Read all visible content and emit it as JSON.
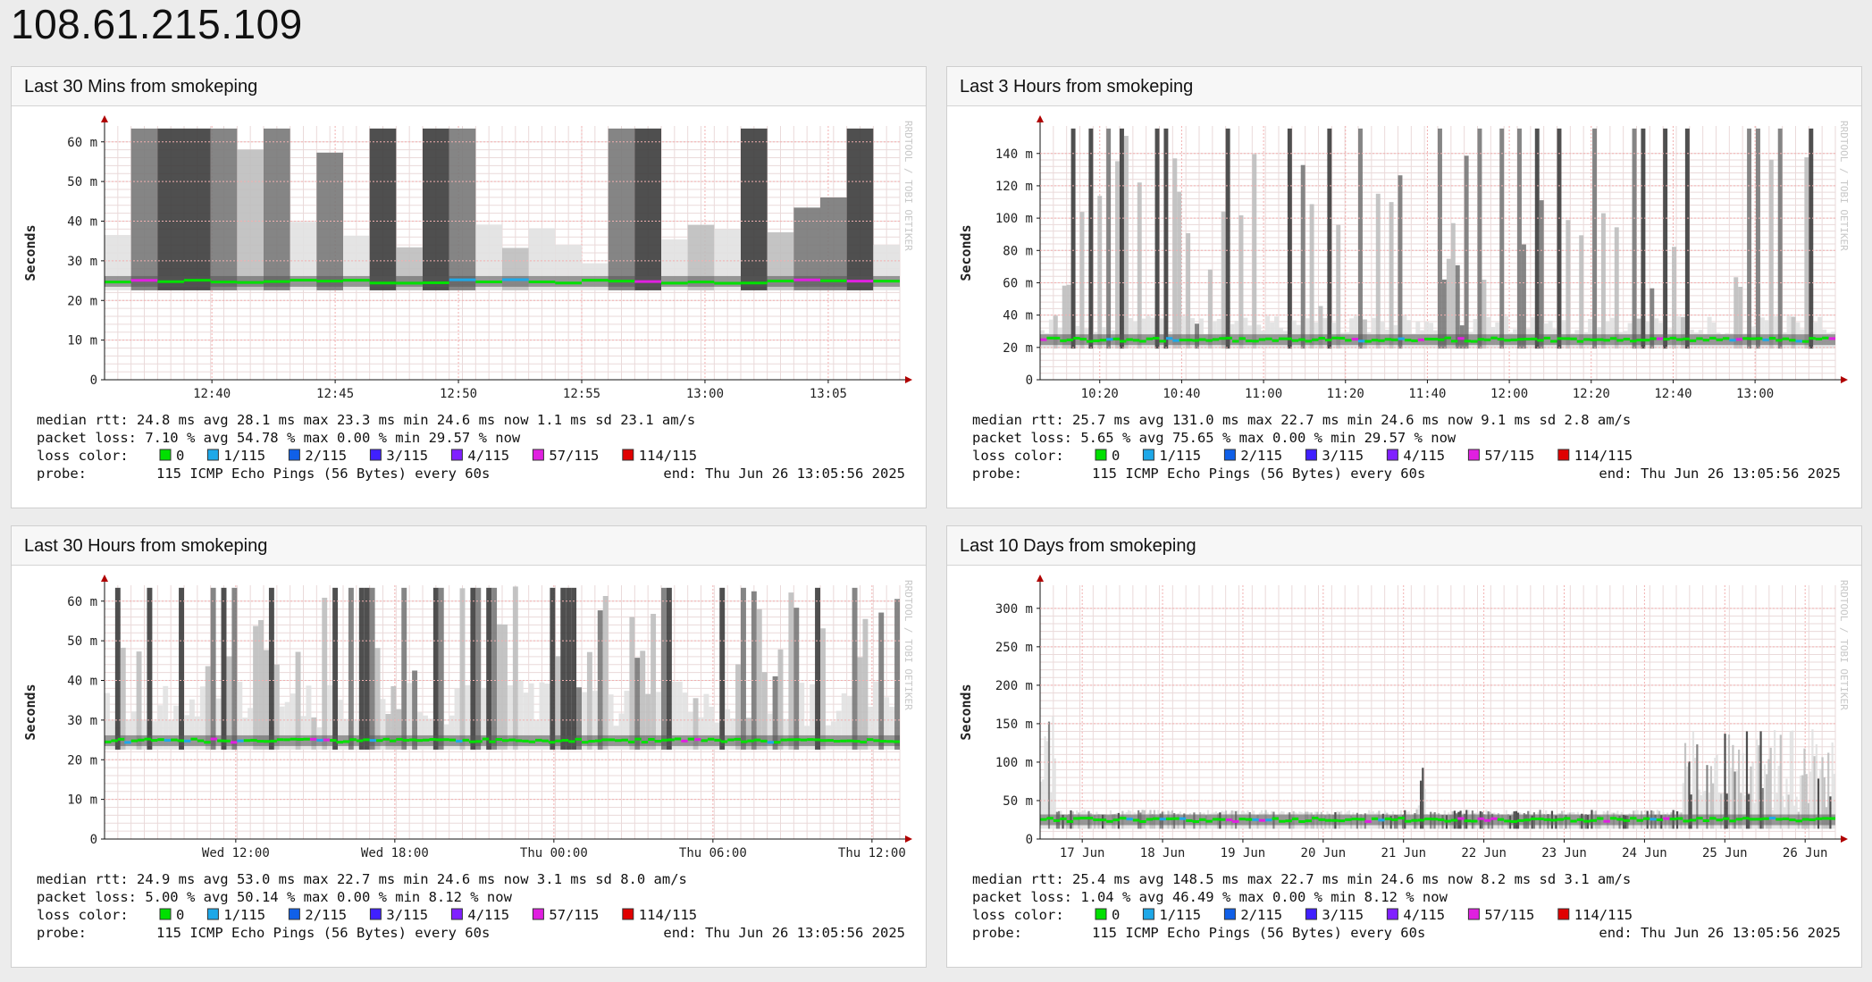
{
  "page": {
    "title": "108.61.215.109"
  },
  "panels": [
    {
      "title": "Last 30 Mins from smokeping",
      "y_label": "Seconds",
      "y_ticks": [
        "0",
        "10 m",
        "20 m",
        "30 m",
        "40 m",
        "50 m",
        "60 m"
      ],
      "y_max": 64,
      "x_ticks": [
        "12:40",
        "12:45",
        "12:50",
        "12:55",
        "13:00",
        "13:05"
      ],
      "x_tick_pos": [
        0.135,
        0.29,
        0.445,
        0.6,
        0.755,
        0.91
      ],
      "watermark": "RRDTOOL / TOBI OETIKER",
      "stats": {
        "median_rtt": "median rtt:  24.8 ms avg  28.1 ms max  23.3 ms min  24.6 ms now  1.1 ms sd  23.1   am/s",
        "packet_loss": "packet loss: 7.10 % avg  54.78 % max  0.00 % min  29.57 % now",
        "loss_label": "loss color:",
        "probe_label": "probe:",
        "probe": "115 ICMP Echo Pings (56 Bytes) every 60s",
        "end": "end: Thu Jun 26 13:05:56 2025"
      }
    },
    {
      "title": "Last 3 Hours from smokeping",
      "y_label": "Seconds",
      "y_ticks": [
        "0",
        "20 m",
        "40 m",
        "60 m",
        "80 m",
        "100 m",
        "120 m",
        "140 m"
      ],
      "y_max": 157,
      "x_ticks": [
        "10:20",
        "10:40",
        "11:00",
        "11:20",
        "11:40",
        "12:00",
        "12:20",
        "12:40",
        "13:00"
      ],
      "x_tick_pos": [
        0.075,
        0.178,
        0.281,
        0.384,
        0.487,
        0.59,
        0.693,
        0.796,
        0.899
      ],
      "watermark": "RRDTOOL / TOBI OETIKER",
      "stats": {
        "median_rtt": "median rtt:  25.7 ms avg  131.0 ms max  22.7 ms min  24.6 ms now  9.1 ms sd  2.8   am/s",
        "packet_loss": "packet loss: 5.65 % avg  75.65 % max  0.00 % min  29.57 % now",
        "loss_label": "loss color:",
        "probe_label": "probe:",
        "probe": "115 ICMP Echo Pings (56 Bytes) every 60s",
        "end": "end: Thu Jun 26 13:05:56 2025"
      }
    },
    {
      "title": "Last 30 Hours from smokeping",
      "y_label": "Seconds",
      "y_ticks": [
        "0",
        "10 m",
        "20 m",
        "30 m",
        "40 m",
        "50 m",
        "60 m"
      ],
      "y_max": 64,
      "x_ticks": [
        "Wed 12:00",
        "Wed 18:00",
        "Thu 00:00",
        "Thu 06:00",
        "Thu 12:00"
      ],
      "x_tick_pos": [
        0.165,
        0.365,
        0.565,
        0.765,
        0.965
      ],
      "watermark": "RRDTOOL / TOBI OETIKER",
      "stats": {
        "median_rtt": "median rtt:  24.9 ms avg  53.0 ms max  22.7 ms min  24.6 ms now  3.1 ms sd  8.0   am/s",
        "packet_loss": "packet loss: 5.00 % avg  50.14 % max  0.00 % min  8.12 % now",
        "loss_label": "loss color:",
        "probe_label": "probe:",
        "probe": "115 ICMP Echo Pings (56 Bytes) every 60s",
        "end": "end: Thu Jun 26 13:05:56 2025"
      }
    },
    {
      "title": "Last 10 Days from smokeping",
      "y_label": "Seconds",
      "y_ticks": [
        "0",
        "50 m",
        "100 m",
        "150 m",
        "200 m",
        "250 m",
        "300 m"
      ],
      "y_max": 330,
      "x_ticks": [
        "17 Jun",
        "18 Jun",
        "19 Jun",
        "20 Jun",
        "21 Jun",
        "22 Jun",
        "23 Jun",
        "24 Jun",
        "25 Jun",
        "26 Jun"
      ],
      "x_tick_pos": [
        0.053,
        0.154,
        0.255,
        0.356,
        0.457,
        0.558,
        0.659,
        0.76,
        0.861,
        0.962
      ],
      "watermark": "RRDTOOL / TOBI OETIKER",
      "stats": {
        "median_rtt": "median rtt:  25.4 ms avg  148.5 ms max  22.7 ms min  24.6 ms now  8.2 ms sd  3.1   am/s",
        "packet_loss": "packet loss: 1.04 % avg  46.49 % max  0.00 % min  8.12 % now",
        "loss_label": "loss color:",
        "probe_label": "probe:",
        "probe": "115 ICMP Echo Pings (56 Bytes) every 60s",
        "end": "end: Thu Jun 26 13:05:56 2025"
      }
    }
  ],
  "loss_legend": [
    {
      "label": "0",
      "color": "#00e000"
    },
    {
      "label": "1/115",
      "color": "#1ea8e8"
    },
    {
      "label": "2/115",
      "color": "#1060e8"
    },
    {
      "label": "3/115",
      "color": "#4020ff"
    },
    {
      "label": "4/115",
      "color": "#8020ff"
    },
    {
      "label": "57/115",
      "color": "#e020e0"
    },
    {
      "label": "114/115",
      "color": "#e00000"
    }
  ],
  "colors": {
    "grid_major": "#f2b0b0",
    "grid_minor": "#eadada",
    "axis": "#111111",
    "arrow": "#b00000"
  }
}
